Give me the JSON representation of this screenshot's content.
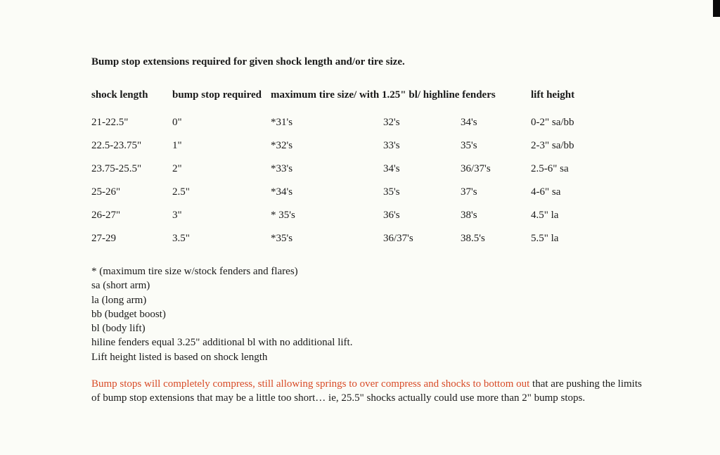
{
  "title": "Bump stop extensions required for given shock length and/or tire size.",
  "headers": {
    "shock": "shock length",
    "bump": "bump stop required",
    "tire": "maximum tire size/ with 1.25\" bl/ highline fenders",
    "lift": "lift height"
  },
  "rows": [
    {
      "shock": "21-22.5\"",
      "bump": "0\"",
      "tire1": "*31's",
      "tire2": "32's",
      "tire3": "34's",
      "lift": "0-2\" sa/bb"
    },
    {
      "shock": "22.5-23.75\"",
      "bump": "1\"",
      "tire1": "*32's",
      "tire2": "33's",
      "tire3": "35's",
      "lift": "2-3\" sa/bb"
    },
    {
      "shock": "23.75-25.5\"",
      "bump": "2\"",
      "tire1": "*33's",
      "tire2": "34's",
      "tire3": "36/37's",
      "lift": "2.5-6\" sa"
    },
    {
      "shock": "25-26\"",
      "bump": "2.5\"",
      "tire1": "*34's",
      "tire2": "35's",
      "tire3": "37's",
      "lift": "4-6\" sa"
    },
    {
      "shock": "26-27\"",
      "bump": "3\"",
      "tire1": "* 35's",
      "tire2": "36's",
      "tire3": "38's",
      "lift": "4.5\" la"
    },
    {
      "shock": "27-29",
      "bump": "3.5\"",
      "tire1": "*35's",
      "tire2": "36/37's",
      "tire3": "38.5's",
      "lift": "5.5\" la"
    }
  ],
  "notes": [
    "* (maximum tire size w/stock fenders and flares)",
    "sa (short arm)",
    "la (long arm)",
    "bb (budget boost)",
    "bl (body lift)",
    "hiline fenders equal 3.25\" additional bl with no additional lift.",
    "Lift height listed  is based on shock length"
  ],
  "warning": {
    "highlight": "Bump stops will completely compress, still allowing springs to over compress and shocks to bottom out",
    "rest": " that are pushing the limits of bump stop extensions that may be a little too short… ie, 25.5\" shocks actually could use more than 2\"  bump stops."
  }
}
